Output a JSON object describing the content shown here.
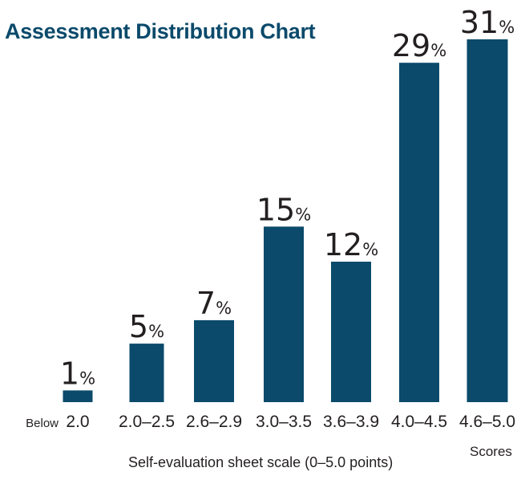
{
  "chart_data": {
    "type": "bar",
    "title": "Assessment Distribution Chart",
    "xlabel": "Self-evaluation sheet scale (0–5.0 points)",
    "x_unit_label": "Scores",
    "categories": [
      {
        "prefix": "Below",
        "label": "2.0"
      },
      {
        "prefix": "",
        "label": "2.0–2.5"
      },
      {
        "prefix": "",
        "label": "2.6–2.9"
      },
      {
        "prefix": "",
        "label": "3.0–3.5"
      },
      {
        "prefix": "",
        "label": "3.6–3.9"
      },
      {
        "prefix": "",
        "label": "4.0–4.5"
      },
      {
        "prefix": "",
        "label": "4.6–5.0"
      }
    ],
    "values": [
      1,
      5,
      7,
      15,
      12,
      29,
      31
    ],
    "value_suffix": "%",
    "ylim": [
      0,
      31
    ],
    "grid": false,
    "legend": "none",
    "colors": {
      "bar": "#0b4a6b",
      "title": "#0b4a6b",
      "text": "#231f20"
    }
  }
}
